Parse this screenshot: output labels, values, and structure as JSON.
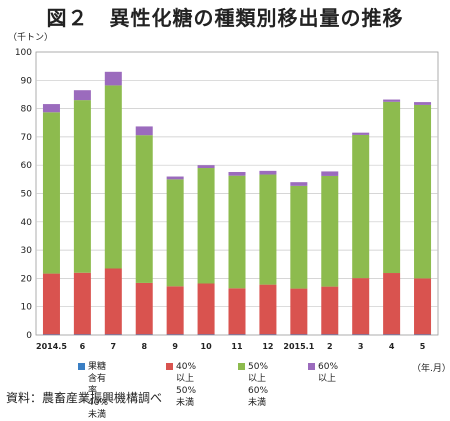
{
  "figure_title": "図２　異性化糖の種類別移出量の推移",
  "unit_label": "（千トン）",
  "x_unit_label": "（年.月）",
  "source_note": "資料：農畜産業振興機構調べ",
  "chart_data": {
    "type": "bar",
    "stacked": true,
    "ylabel": "（千トン）",
    "xlabel": "（年.月）",
    "ylim": [
      0,
      100
    ],
    "yticks": [
      0,
      10,
      20,
      30,
      40,
      50,
      60,
      70,
      80,
      90,
      100
    ],
    "grid": true,
    "legend_position": "bottom",
    "categories": [
      "2014.5",
      "6",
      "7",
      "8",
      "9",
      "10",
      "11",
      "12",
      "2015.1",
      "2",
      "3",
      "4",
      "5"
    ],
    "series": [
      {
        "name": "果糖含有率\n40%未満",
        "color": "#3a7fc4",
        "values": [
          0.2,
          0.2,
          0.2,
          0.2,
          0.2,
          0.2,
          0.2,
          0.2,
          0.2,
          0.2,
          0.2,
          0.2,
          0.2
        ]
      },
      {
        "name": "40%以上\n50%未満",
        "color": "#d9534f",
        "values": [
          21.5,
          21.8,
          23.3,
          18.2,
          17.0,
          18.0,
          16.3,
          17.6,
          16.2,
          16.9,
          19.9,
          21.7,
          19.8
        ]
      },
      {
        "name": "50%以上\n60%未満",
        "color": "#8dbb4e",
        "values": [
          57.0,
          61.0,
          64.7,
          52.2,
          37.8,
          40.8,
          39.8,
          38.9,
          36.3,
          39.1,
          50.6,
          60.5,
          61.3
        ]
      },
      {
        "name": "60%以上",
        "color": "#9b6bbd",
        "values": [
          2.9,
          3.5,
          4.8,
          3.1,
          1.0,
          1.0,
          1.3,
          1.3,
          1.3,
          1.6,
          0.8,
          0.8,
          1.0
        ]
      }
    ]
  }
}
